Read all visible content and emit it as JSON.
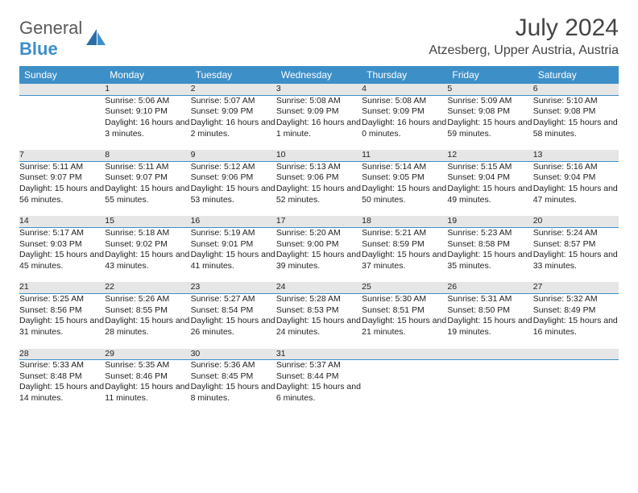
{
  "logo": {
    "part1": "General",
    "part2": "Blue"
  },
  "title": "July 2024",
  "location": "Atzesberg, Upper Austria, Austria",
  "weekdays": [
    "Sunday",
    "Monday",
    "Tuesday",
    "Wednesday",
    "Thursday",
    "Friday",
    "Saturday"
  ],
  "colors": {
    "header_bg": "#3d8fc8",
    "header_text": "#ffffff",
    "daynum_bg": "#e6e6e6",
    "daynum_text": "#666666",
    "border": "#3d8fc8"
  },
  "days": [
    "",
    {
      "n": "1",
      "sr": "5:06 AM",
      "ss": "9:10 PM",
      "dl": "16 hours and 3 minutes."
    },
    {
      "n": "2",
      "sr": "5:07 AM",
      "ss": "9:09 PM",
      "dl": "16 hours and 2 minutes."
    },
    {
      "n": "3",
      "sr": "5:08 AM",
      "ss": "9:09 PM",
      "dl": "16 hours and 1 minute."
    },
    {
      "n": "4",
      "sr": "5:08 AM",
      "ss": "9:09 PM",
      "dl": "16 hours and 0 minutes."
    },
    {
      "n": "5",
      "sr": "5:09 AM",
      "ss": "9:08 PM",
      "dl": "15 hours and 59 minutes."
    },
    {
      "n": "6",
      "sr": "5:10 AM",
      "ss": "9:08 PM",
      "dl": "15 hours and 58 minutes."
    },
    {
      "n": "7",
      "sr": "5:11 AM",
      "ss": "9:07 PM",
      "dl": "15 hours and 56 minutes."
    },
    {
      "n": "8",
      "sr": "5:11 AM",
      "ss": "9:07 PM",
      "dl": "15 hours and 55 minutes."
    },
    {
      "n": "9",
      "sr": "5:12 AM",
      "ss": "9:06 PM",
      "dl": "15 hours and 53 minutes."
    },
    {
      "n": "10",
      "sr": "5:13 AM",
      "ss": "9:06 PM",
      "dl": "15 hours and 52 minutes."
    },
    {
      "n": "11",
      "sr": "5:14 AM",
      "ss": "9:05 PM",
      "dl": "15 hours and 50 minutes."
    },
    {
      "n": "12",
      "sr": "5:15 AM",
      "ss": "9:04 PM",
      "dl": "15 hours and 49 minutes."
    },
    {
      "n": "13",
      "sr": "5:16 AM",
      "ss": "9:04 PM",
      "dl": "15 hours and 47 minutes."
    },
    {
      "n": "14",
      "sr": "5:17 AM",
      "ss": "9:03 PM",
      "dl": "15 hours and 45 minutes."
    },
    {
      "n": "15",
      "sr": "5:18 AM",
      "ss": "9:02 PM",
      "dl": "15 hours and 43 minutes."
    },
    {
      "n": "16",
      "sr": "5:19 AM",
      "ss": "9:01 PM",
      "dl": "15 hours and 41 minutes."
    },
    {
      "n": "17",
      "sr": "5:20 AM",
      "ss": "9:00 PM",
      "dl": "15 hours and 39 minutes."
    },
    {
      "n": "18",
      "sr": "5:21 AM",
      "ss": "8:59 PM",
      "dl": "15 hours and 37 minutes."
    },
    {
      "n": "19",
      "sr": "5:23 AM",
      "ss": "8:58 PM",
      "dl": "15 hours and 35 minutes."
    },
    {
      "n": "20",
      "sr": "5:24 AM",
      "ss": "8:57 PM",
      "dl": "15 hours and 33 minutes."
    },
    {
      "n": "21",
      "sr": "5:25 AM",
      "ss": "8:56 PM",
      "dl": "15 hours and 31 minutes."
    },
    {
      "n": "22",
      "sr": "5:26 AM",
      "ss": "8:55 PM",
      "dl": "15 hours and 28 minutes."
    },
    {
      "n": "23",
      "sr": "5:27 AM",
      "ss": "8:54 PM",
      "dl": "15 hours and 26 minutes."
    },
    {
      "n": "24",
      "sr": "5:28 AM",
      "ss": "8:53 PM",
      "dl": "15 hours and 24 minutes."
    },
    {
      "n": "25",
      "sr": "5:30 AM",
      "ss": "8:51 PM",
      "dl": "15 hours and 21 minutes."
    },
    {
      "n": "26",
      "sr": "5:31 AM",
      "ss": "8:50 PM",
      "dl": "15 hours and 19 minutes."
    },
    {
      "n": "27",
      "sr": "5:32 AM",
      "ss": "8:49 PM",
      "dl": "15 hours and 16 minutes."
    },
    {
      "n": "28",
      "sr": "5:33 AM",
      "ss": "8:48 PM",
      "dl": "15 hours and 14 minutes."
    },
    {
      "n": "29",
      "sr": "5:35 AM",
      "ss": "8:46 PM",
      "dl": "15 hours and 11 minutes."
    },
    {
      "n": "30",
      "sr": "5:36 AM",
      "ss": "8:45 PM",
      "dl": "15 hours and 8 minutes."
    },
    {
      "n": "31",
      "sr": "5:37 AM",
      "ss": "8:44 PM",
      "dl": "15 hours and 6 minutes."
    },
    "",
    "",
    ""
  ]
}
